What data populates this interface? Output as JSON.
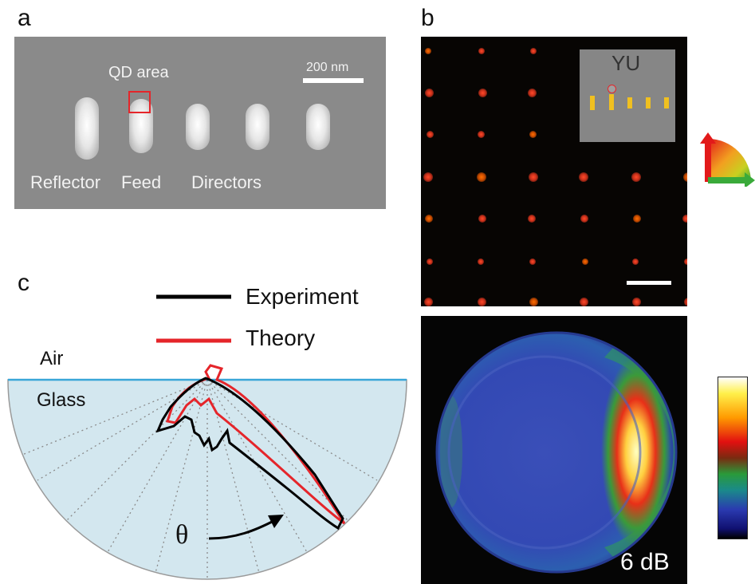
{
  "panels": {
    "a": {
      "letter": "a",
      "scalebar_label": "200 nm",
      "qd_label": "QD area",
      "element_labels": {
        "reflector": "Reflector",
        "feed": "Feed",
        "directors": "Directors"
      }
    },
    "b": {
      "letter": "b",
      "inset_label": "YU",
      "db_label": "6 dB"
    },
    "c": {
      "letter": "c",
      "legend": [
        {
          "name": "Experiment",
          "color": "#000000"
        },
        {
          "name": "Theory",
          "color": "#e5252a"
        }
      ],
      "media": {
        "upper": "Air",
        "lower": "Glass"
      },
      "angle_symbol": "θ"
    }
  },
  "colors": {
    "interface_line": "#3aa6d8",
    "glass_fill": "#d3e7ef",
    "experiment": "#000000",
    "theory": "#e5252a",
    "qd_box": "#e5252a",
    "rod_highlight": "#f0c020"
  },
  "icons": [
    "polarization-arrows-icon",
    "colorbar"
  ]
}
